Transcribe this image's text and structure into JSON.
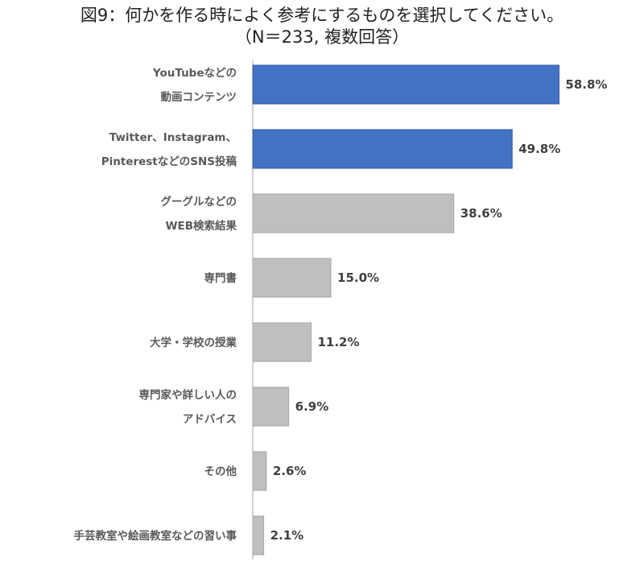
{
  "chart_data": {
    "type": "bar",
    "orientation": "horizontal",
    "title": "図9：何かを作る時によく参考にするものを選択してください。",
    "subtitle": "（N＝233, 複数回答）",
    "categories": [
      [
        "YouTubeなどの",
        "動画コンテンツ"
      ],
      [
        "Twitter、Instagram、",
        "PinterestなどのSNS投稿"
      ],
      [
        "グーグルなどの",
        "WEB検索結果"
      ],
      [
        "専門書"
      ],
      [
        "大学・学校の授業"
      ],
      [
        "専門家や詳しい人の",
        "アドバイス"
      ],
      [
        "その他"
      ],
      [
        "手芸教室や絵画教室などの習い事"
      ]
    ],
    "values": [
      58.8,
      49.8,
      38.6,
      15.0,
      11.2,
      6.9,
      2.6,
      2.1
    ],
    "value_labels": [
      "58.8%",
      "49.8%",
      "38.6%",
      "15.0%",
      "11.2%",
      "6.9%",
      "2.6%",
      "2.1%"
    ],
    "highlight_count": 2,
    "colors": {
      "highlight_fill": "#4472C4",
      "highlight_stroke": "#2F55A4",
      "normal_fill": "#BFBFBF",
      "normal_stroke": "#A6A6A6",
      "axis": "#A6A6A6"
    },
    "grid": false,
    "legend": "none"
  }
}
